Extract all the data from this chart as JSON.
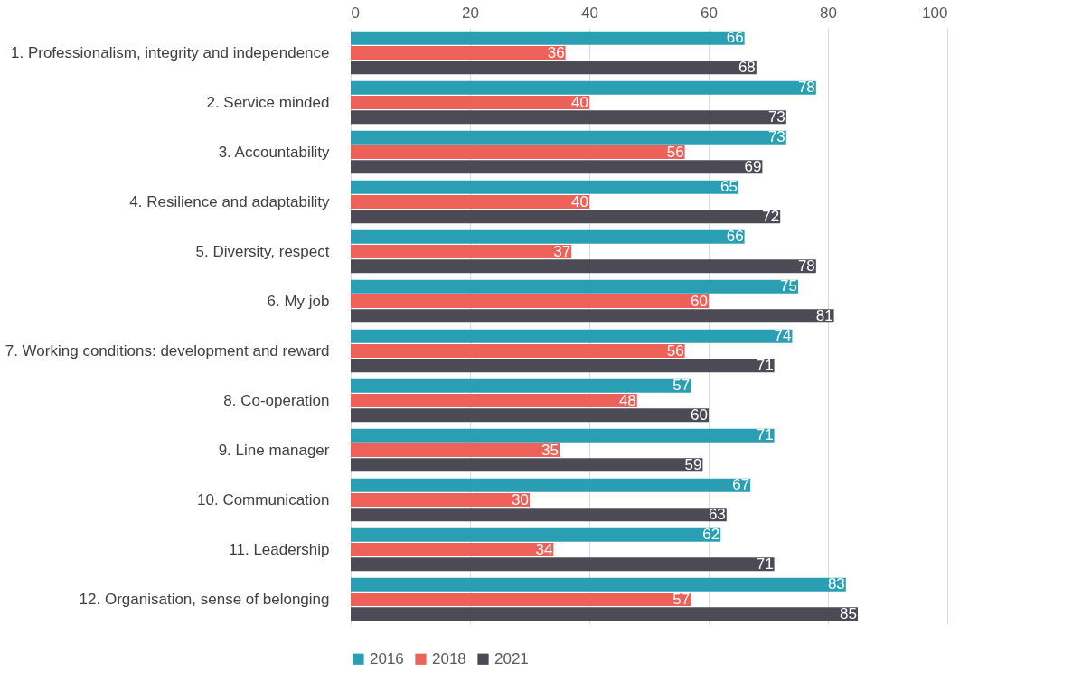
{
  "chart_data": {
    "type": "bar",
    "orientation": "horizontal",
    "categories": [
      "1. Professionalism, integrity and independence",
      "2. Service minded",
      "3. Accountability",
      "4. Resilience and adaptability",
      "5. Diversity, respect",
      "6. My job",
      "7. Working conditions: development and reward",
      "8. Co-operation",
      "9. Line manager",
      "10. Communication",
      "11. Leadership",
      "12. Organisation, sense of belonging"
    ],
    "series": [
      {
        "name": "2016",
        "color": "#2a9fb4",
        "values": [
          66,
          78,
          73,
          65,
          66,
          75,
          74,
          57,
          71,
          67,
          62,
          83
        ]
      },
      {
        "name": "2018",
        "color": "#ee6159",
        "values": [
          36,
          40,
          56,
          40,
          37,
          60,
          56,
          48,
          35,
          30,
          34,
          57
        ]
      },
      {
        "name": "2021",
        "color": "#4b4a55",
        "values": [
          68,
          73,
          69,
          72,
          78,
          81,
          71,
          60,
          59,
          63,
          71,
          85
        ]
      }
    ],
    "xlim": [
      0,
      100
    ],
    "xticks": [
      0,
      20,
      40,
      60,
      80,
      100
    ],
    "grid": "x",
    "legend": "bottom",
    "data_labels": true
  }
}
